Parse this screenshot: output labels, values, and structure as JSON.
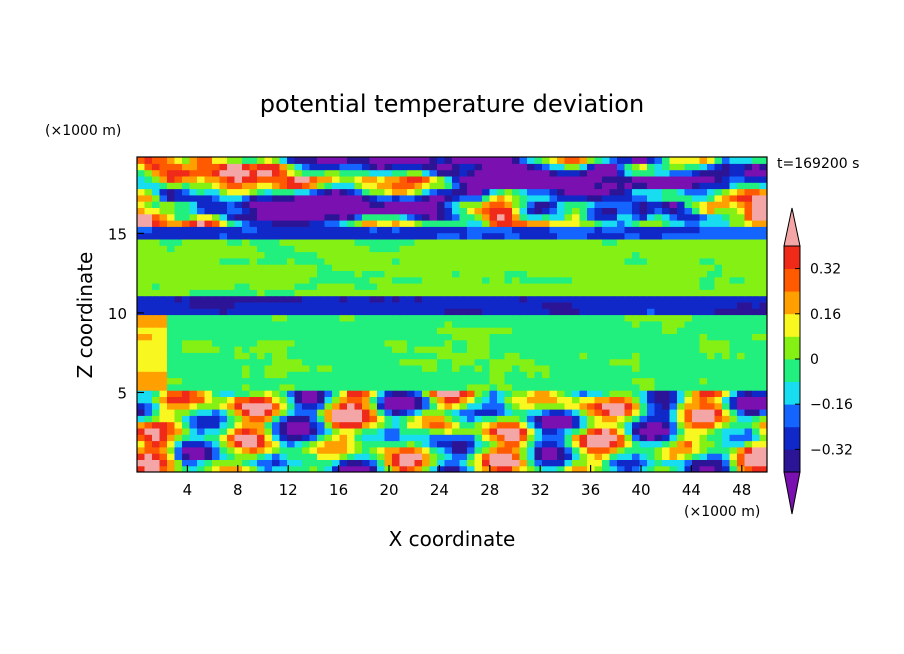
{
  "chart_data": {
    "type": "heatmap",
    "title": "potential temperature deviation",
    "xlabel": "X coordinate",
    "ylabel": "Z coordinate",
    "x_unit": "(×1000 m)",
    "y_unit": "(×1000 m)",
    "time_label": "t=169200 s",
    "xlim": [
      0,
      50
    ],
    "ylim": [
      0,
      19.8
    ],
    "x_ticks": [
      4,
      8,
      12,
      16,
      20,
      24,
      28,
      32,
      36,
      40,
      44,
      48
    ],
    "y_ticks": [
      5,
      10,
      15
    ],
    "colorbar": {
      "levels": [
        -0.4,
        -0.32,
        -0.24,
        -0.16,
        -0.08,
        0,
        0.08,
        0.16,
        0.24,
        0.32,
        0.4
      ],
      "tick_labels": [
        "0.32",
        "0.16",
        "0",
        "−0.16",
        "−0.32"
      ],
      "tick_values": [
        0.32,
        0.16,
        0,
        -0.16,
        -0.32
      ],
      "colors": [
        "#7a10b0",
        "#2c1496",
        "#1028c8",
        "#1464ff",
        "#18dcf0",
        "#22f07e",
        "#84f014",
        "#f8f820",
        "#ffa000",
        "#ff5a00",
        "#f02a18",
        "#f4a6a6"
      ],
      "extend": "both"
    },
    "field_description_layers": [
      {
        "z_range": [
          15.5,
          19.8
        ],
        "dominant": "purple/pink mix"
      },
      {
        "z_range": [
          14.5,
          15.5
        ],
        "dominant": "blue/dark blue"
      },
      {
        "z_range": [
          11.2,
          14.5
        ],
        "dominant": "green"
      },
      {
        "z_range": [
          10.0,
          11.2
        ],
        "dominant": "dark blue"
      },
      {
        "z_range": [
          5.0,
          10.0
        ],
        "dominant": "green"
      },
      {
        "z_range": [
          0.0,
          5.0
        ],
        "dominant": "turbulent mixed"
      }
    ]
  }
}
